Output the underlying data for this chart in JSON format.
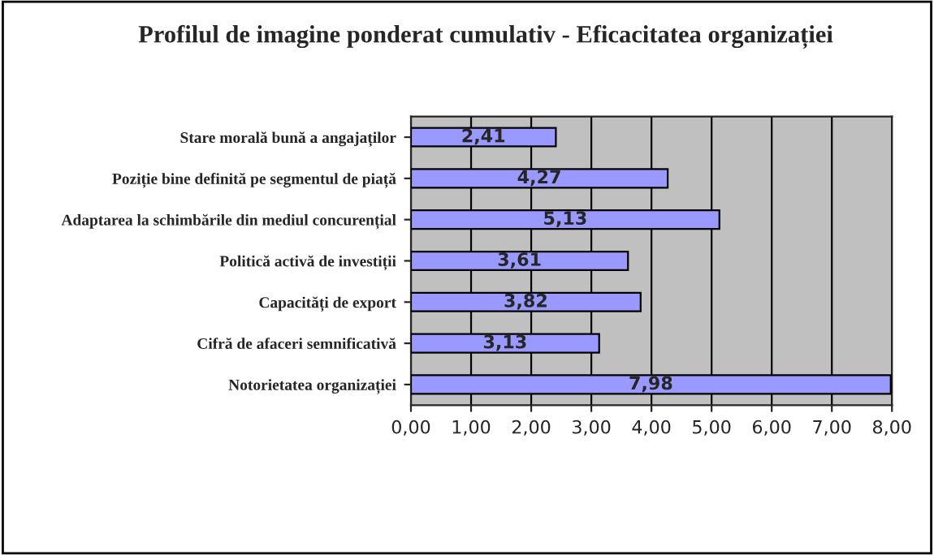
{
  "chart_data": {
    "type": "bar",
    "orientation": "horizontal",
    "title": "Profilul de imagine ponderat cumulativ - Eficacitatea organizației",
    "categories": [
      "Stare morală bună a angajaților",
      "Poziție bine definită pe segmentul de piață",
      "Adaptarea la schimbările din mediul concurențial",
      "Politică activă de investiții",
      "Capacități de export",
      "Cifră de afaceri semnificativă",
      "Notorietatea organizației"
    ],
    "values": [
      2.41,
      4.27,
      5.13,
      3.61,
      3.82,
      3.13,
      7.98
    ],
    "value_labels": [
      "2,41",
      "4,27",
      "5,13",
      "3,61",
      "3,82",
      "3,13",
      "7,98"
    ],
    "color": "#9999ff",
    "xlim": [
      0,
      8
    ],
    "xticks": [
      {
        "value": 0,
        "label": "0,00"
      },
      {
        "value": 1,
        "label": "1,00"
      },
      {
        "value": 2,
        "label": "2,00"
      },
      {
        "value": 3,
        "label": "3,00"
      },
      {
        "value": 4,
        "label": "4,00"
      },
      {
        "value": 5,
        "label": "5,00"
      },
      {
        "value": 6,
        "label": "6,00"
      },
      {
        "value": 7,
        "label": "7,00"
      },
      {
        "value": 8,
        "label": "8,00"
      }
    ],
    "grid": "x"
  }
}
